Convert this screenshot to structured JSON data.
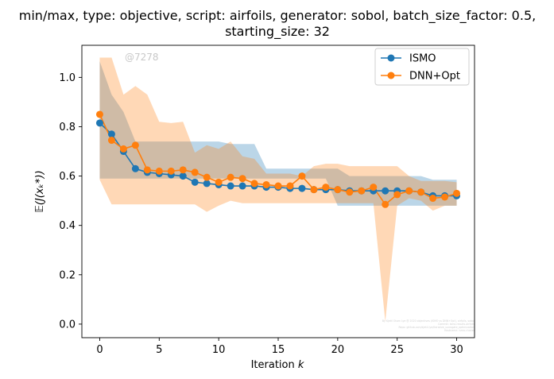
{
  "chart_data": {
    "type": "line",
    "title_line1": "min/max, type: objective, script: airfoils, generator: sobol, batch_size_factor: 0.5,",
    "title_line2": "starting_size: 32",
    "xlabel_prefix": "Iteration ",
    "xlabel_var": "k",
    "ylabel": "𝔼(J(xₖ*))",
    "xlim": [
      -1.5,
      31.5
    ],
    "ylim": [
      -0.055,
      1.13
    ],
    "xticks": [
      0,
      5,
      10,
      15,
      20,
      25,
      30
    ],
    "yticks": [
      0.0,
      0.2,
      0.4,
      0.6,
      0.8,
      1.0
    ],
    "ytick_labels": [
      "0.0",
      "0.2",
      "0.4",
      "0.6",
      "0.8",
      "1.0"
    ],
    "legend_position": "upper right",
    "watermark": "@7278",
    "fine_print": [
      "By Kjetil Olsen Lye @ 2020 objectives (ISMO vs DNN+Opt), airfoils, sobol",
      "Commit: ismo-results-airfoils",
      "Repo: github.com/kjetil-lye/iterative_surrogate_optimization",
      "Hostname: ismo-cluster"
    ],
    "series": [
      {
        "name": "ISMO",
        "color": "#1f77b4",
        "band_color": "#1f77b4",
        "x": [
          0,
          1,
          2,
          3,
          4,
          5,
          6,
          7,
          8,
          9,
          10,
          11,
          12,
          13,
          14,
          15,
          16,
          17,
          18,
          19,
          20,
          21,
          22,
          23,
          24,
          25,
          26,
          27,
          28,
          29,
          30
        ],
        "mean": [
          0.815,
          0.77,
          0.7,
          0.63,
          0.615,
          0.61,
          0.605,
          0.6,
          0.575,
          0.57,
          0.565,
          0.56,
          0.56,
          0.56,
          0.555,
          0.555,
          0.55,
          0.55,
          0.545,
          0.545,
          0.545,
          0.54,
          0.54,
          0.54,
          0.54,
          0.54,
          0.54,
          0.535,
          0.52,
          0.52,
          0.52
        ],
        "min": [
          0.59,
          0.59,
          0.59,
          0.59,
          0.59,
          0.59,
          0.59,
          0.59,
          0.59,
          0.59,
          0.59,
          0.59,
          0.59,
          0.59,
          0.59,
          0.59,
          0.59,
          0.59,
          0.59,
          0.59,
          0.48,
          0.48,
          0.48,
          0.48,
          0.48,
          0.48,
          0.48,
          0.48,
          0.48,
          0.48,
          0.48
        ],
        "max": [
          1.065,
          0.93,
          0.86,
          0.74,
          0.74,
          0.74,
          0.74,
          0.74,
          0.74,
          0.74,
          0.74,
          0.73,
          0.73,
          0.73,
          0.63,
          0.63,
          0.63,
          0.63,
          0.63,
          0.63,
          0.63,
          0.6,
          0.6,
          0.6,
          0.6,
          0.6,
          0.6,
          0.6,
          0.585,
          0.585,
          0.585
        ]
      },
      {
        "name": "DNN+Opt",
        "color": "#ff7f0e",
        "band_color": "#ff7f0e",
        "x": [
          0,
          1,
          2,
          3,
          4,
          5,
          6,
          7,
          8,
          9,
          10,
          11,
          12,
          13,
          14,
          15,
          16,
          17,
          18,
          19,
          20,
          21,
          22,
          23,
          24,
          25,
          26,
          27,
          28,
          29,
          30
        ],
        "mean": [
          0.85,
          0.745,
          0.71,
          0.725,
          0.625,
          0.62,
          0.62,
          0.625,
          0.615,
          0.595,
          0.575,
          0.595,
          0.59,
          0.57,
          0.565,
          0.56,
          0.56,
          0.6,
          0.545,
          0.555,
          0.545,
          0.535,
          0.54,
          0.555,
          0.485,
          0.525,
          0.54,
          0.535,
          0.51,
          0.515,
          0.53
        ],
        "min": [
          0.585,
          0.485,
          0.485,
          0.485,
          0.485,
          0.485,
          0.485,
          0.485,
          0.485,
          0.455,
          0.48,
          0.5,
          0.49,
          0.49,
          0.49,
          0.49,
          0.49,
          0.49,
          0.49,
          0.49,
          0.49,
          0.49,
          0.49,
          0.49,
          0.01,
          0.48,
          0.51,
          0.5,
          0.46,
          0.48,
          0.48
        ],
        "max": [
          1.08,
          1.08,
          0.93,
          0.965,
          0.93,
          0.82,
          0.815,
          0.82,
          0.695,
          0.725,
          0.71,
          0.74,
          0.68,
          0.67,
          0.61,
          0.61,
          0.61,
          0.6,
          0.64,
          0.65,
          0.65,
          0.64,
          0.64,
          0.64,
          0.64,
          0.64,
          0.6,
          0.58,
          0.58,
          0.58,
          0.575
        ]
      }
    ]
  }
}
